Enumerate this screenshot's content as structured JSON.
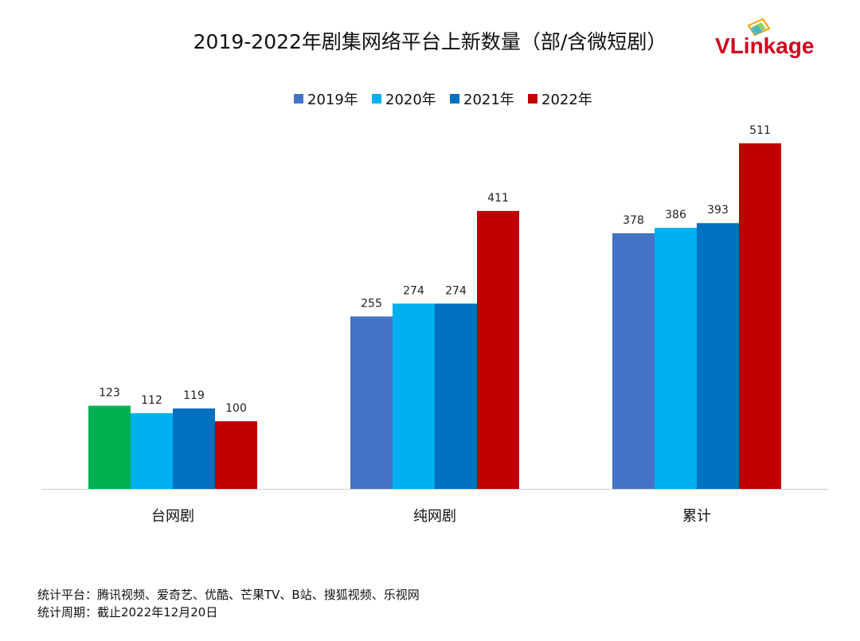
{
  "logo": {
    "v": "V",
    "rest": "Linkage"
  },
  "footer": {
    "platforms": "统计平台：腾讯视频、爱奇艺、优酷、芒果TV、B站、搜狐视频、乐视网",
    "period": "统计周期：截止2022年12月20日"
  },
  "chart_data": {
    "type": "bar",
    "title": "2019-2022年剧集网络平台上新数量（部/含微短剧）",
    "categories": [
      "台网剧",
      "纯网剧",
      "累计"
    ],
    "series": [
      {
        "name": "2019年",
        "values": [
          123,
          255,
          378
        ]
      },
      {
        "name": "2020年",
        "values": [
          112,
          274,
          386
        ]
      },
      {
        "name": "2021年",
        "values": [
          119,
          274,
          393
        ]
      },
      {
        "name": "2022年",
        "values": [
          100,
          411,
          511
        ]
      }
    ],
    "colors": [
      "#4472C4",
      "#00B0F0",
      "#0070C0",
      "#C00000"
    ],
    "highlight": {
      "series": 0,
      "category": 0,
      "color": "#00B050"
    },
    "legend_position": "top-center",
    "xlabel": "",
    "ylabel": "",
    "ylim": [
      0,
      560
    ],
    "grid": false
  }
}
